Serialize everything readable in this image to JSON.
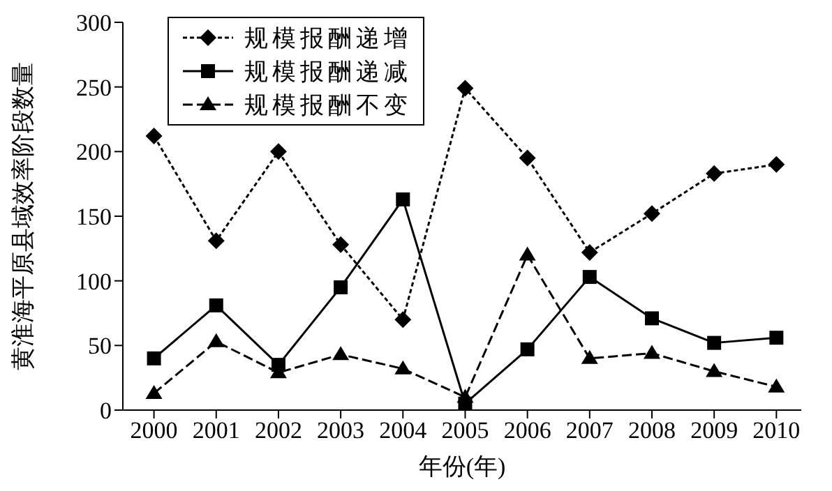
{
  "chart_data": {
    "type": "line",
    "xlabel": "年份(年)",
    "ylabel": "黄淮海平原县域效率阶段数量",
    "categories": [
      "2000",
      "2001",
      "2002",
      "2003",
      "2004",
      "2005",
      "2006",
      "2007",
      "2008",
      "2009",
      "2010"
    ],
    "series": [
      {
        "name": "规模报酬递增",
        "color": "#000000",
        "marker": "diamond",
        "line_style": "dotted",
        "values": [
          212,
          131,
          200,
          128,
          70,
          249,
          195,
          122,
          152,
          183,
          190
        ]
      },
      {
        "name": "规模报酬递减",
        "color": "#000000",
        "marker": "square",
        "line_style": "solid",
        "values": [
          40,
          81,
          35,
          95,
          163,
          5,
          47,
          103,
          71,
          52,
          56
        ]
      },
      {
        "name": "规模报酬不变",
        "color": "#000000",
        "marker": "triangle",
        "line_style": "dashed",
        "values": [
          13,
          53,
          29,
          43,
          32,
          10,
          120,
          40,
          44,
          30,
          18
        ]
      }
    ],
    "ylim": [
      0,
      300
    ],
    "yticks": [
      0,
      50,
      100,
      150,
      200,
      250,
      300
    ],
    "grid": false,
    "legend": "top"
  }
}
